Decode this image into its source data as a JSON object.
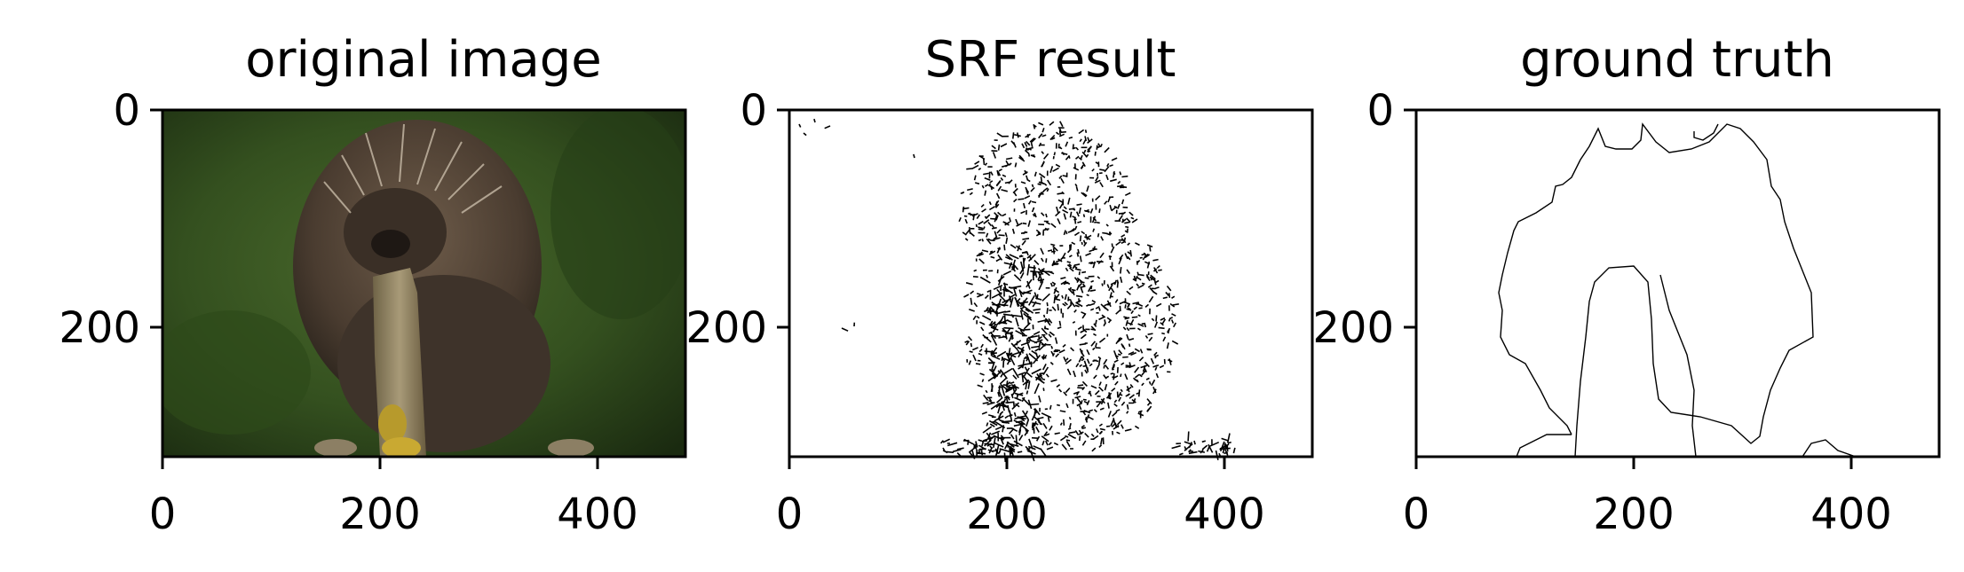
{
  "chart_data": [
    {
      "type": "image",
      "title": "original image",
      "xlim": [
        0,
        481
      ],
      "ylim": [
        321,
        0
      ],
      "xticks": [
        0,
        200,
        400
      ],
      "yticks": [
        0,
        200
      ],
      "xtick_labels": [
        "0",
        "200",
        "400"
      ],
      "ytick_labels": [
        "0",
        "200"
      ],
      "colors": {
        "background_dark": "#1f3114",
        "background_mid": "#3d5a25",
        "fur": "#4a3c30",
        "branch": "#8a7a58",
        "lichen": "#b79a2c"
      }
    },
    {
      "type": "image",
      "title": "SRF result",
      "xlim": [
        0,
        481
      ],
      "ylim": [
        321,
        0
      ],
      "xticks": [
        0,
        200,
        400
      ],
      "yticks": [
        0,
        200
      ],
      "xtick_labels": [
        "0",
        "200",
        "400"
      ],
      "ytick_labels": [
        "0",
        "200"
      ]
    },
    {
      "type": "image",
      "title": "ground truth",
      "xlim": [
        0,
        481
      ],
      "ylim": [
        321,
        0
      ],
      "xticks": [
        0,
        200,
        400
      ],
      "yticks": [
        0,
        200
      ],
      "xtick_labels": [
        "0",
        "200",
        "400"
      ],
      "ytick_labels": [
        "0",
        "200"
      ]
    }
  ]
}
